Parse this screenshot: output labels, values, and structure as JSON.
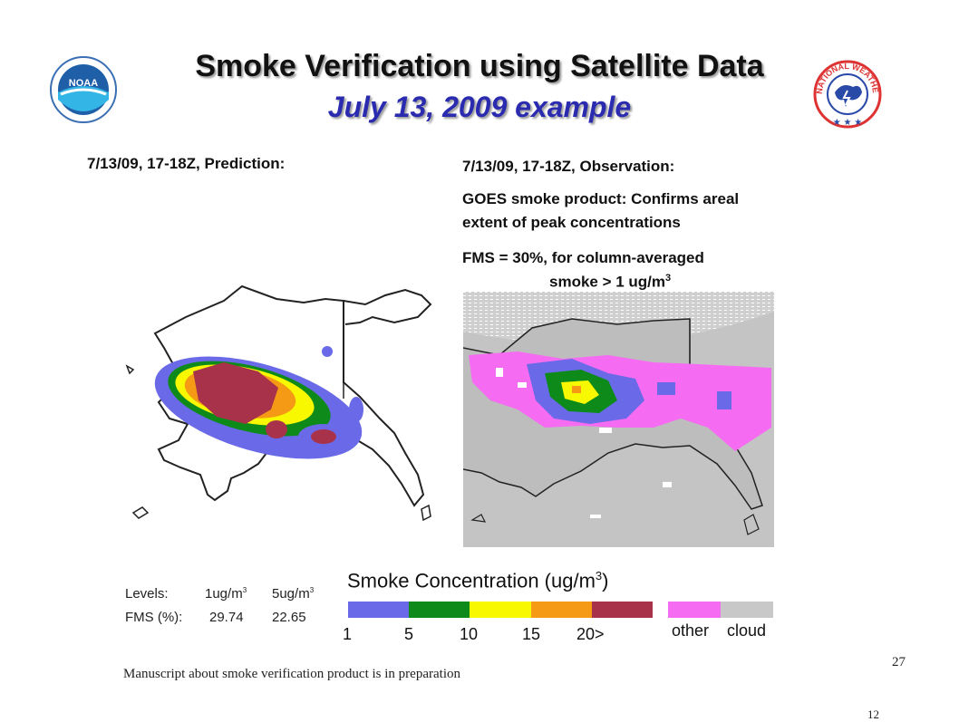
{
  "title": "Smoke Verification using Satellite Data",
  "subtitle": "July 13, 2009 example",
  "logos": {
    "left": "NOAA",
    "right_arc": "NATIONAL WEATHER SERVICE"
  },
  "left_panel": {
    "caption": "7/13/09, 17-18Z, Prediction:"
  },
  "right_panel": {
    "caption": "7/13/09, 17-18Z, Observation:",
    "goes_line1": "GOES smoke product:  Confirms areal",
    "goes_line2": "extent of peak concentrations",
    "fms_line1": "FMS = 30%, for column-averaged",
    "fms_line2_prefix": "smoke > 1 ug/m",
    "fms_line2_sup": "3"
  },
  "levels_table": {
    "row1_label": "Levels:",
    "row1_v1": "1ug/m",
    "row1_v2": "5ug/m",
    "sup": "3",
    "row2_label": "FMS (%):",
    "row2_v1": "29.74",
    "row2_v2": "22.65"
  },
  "legend": {
    "title_prefix": "Smoke Concentration (ug/m",
    "title_sup": "3",
    "title_suffix": ")",
    "ticks": [
      "1",
      "5",
      "10",
      "15",
      "20>"
    ],
    "colors": [
      "#6a6ae8",
      "#0d8a1a",
      "#f8f800",
      "#f59a14",
      "#a8324a"
    ],
    "other_label": "other",
    "cloud_label": "cloud",
    "other_color": "#f56cf2",
    "cloud_color": "#c8c8c8"
  },
  "footnote": "Manuscript about smoke verification product is in preparation",
  "page_number": "27",
  "page_number_small": "12"
}
